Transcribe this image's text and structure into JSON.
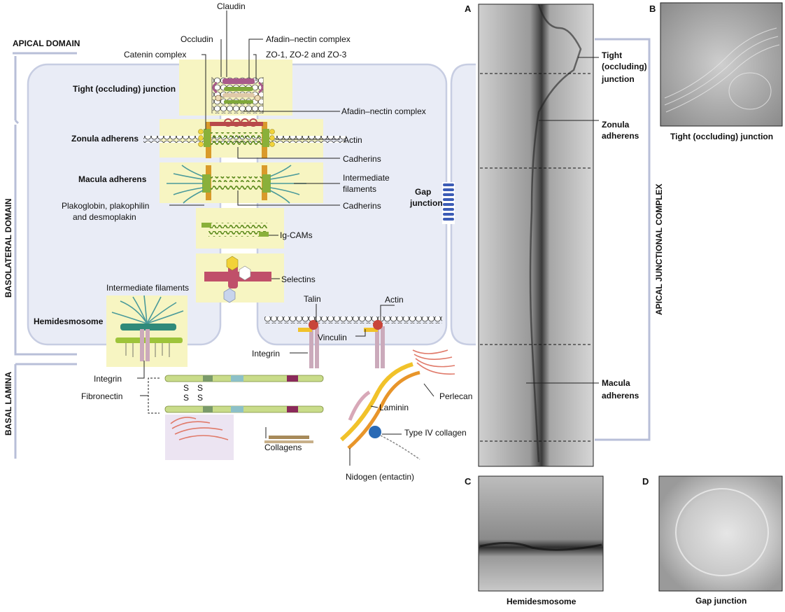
{
  "domains": {
    "apical": "APICAL DOMAIN",
    "basolateral": "BASOLATERAL DOMAIN",
    "basal_lamina": "BASAL LAMINA",
    "apical_junctional_complex": "APICAL JUNCTIONAL COMPLEX"
  },
  "junctions": {
    "tight": "Tight (occluding) junction",
    "zonula": "Zonula adherens",
    "macula": "Macula adherens",
    "hemidesmosome": "Hemidesmosome",
    "gap_line1": "Gap",
    "gap_line2": "junction"
  },
  "labels": {
    "claudin": "Claudin",
    "occludin": "Occludin",
    "afadin_top": "Afadin–nectin complex",
    "catenin": "Catenin complex",
    "zo": "ZO-1, ZO-2 and ZO-3",
    "afadin_mid": "Afadin–nectin complex",
    "actin_right": "Actin",
    "cadherins1": "Cadherins",
    "if_line1": "Intermediate",
    "if_line2": "filaments",
    "cadherins2": "Cadherins",
    "plako_line1": "Plakoglobin, plakophilin",
    "plako_line2": "and desmoplakin",
    "igcams": "Ig-CAMs",
    "selectins": "Selectins",
    "if_hemi": "Intermediate filaments",
    "talin": "Talin",
    "actin_bottom": "Actin",
    "vinculin": "Vinculin",
    "integrin_mid": "Integrin",
    "integrin_left": "Integrin",
    "fibronectin": "Fibronectin",
    "perlecan": "Perlecan",
    "laminin": "Laminin",
    "type4": "Type IV collagen",
    "collagens": "Collagens",
    "nidogen": "Nidogen (entactin)",
    "ss": "S"
  },
  "micrographs": {
    "A": {
      "letter": "A",
      "tight_l1": "Tight",
      "tight_l2": "(occluding)",
      "tight_l3": "junction",
      "zonula_l1": "Zonula",
      "zonula_l2": "adherens",
      "macula_l1": "Macula",
      "macula_l2": "adherens"
    },
    "B": {
      "letter": "B",
      "caption": "Tight (occluding) junction"
    },
    "C": {
      "letter": "C",
      "caption": "Hemidesmosome"
    },
    "D": {
      "letter": "D",
      "caption": "Gap junction"
    }
  },
  "colors": {
    "cell": "#e9ecf6",
    "cell_border": "#c7cde2",
    "highlight": "#f7f5c2",
    "cadherin": "#6f9a2a",
    "keratin": "#4a9a9a",
    "integrin": "#cbaabb",
    "selectin": "#c0506a",
    "plaque": "#d99a2a"
  }
}
